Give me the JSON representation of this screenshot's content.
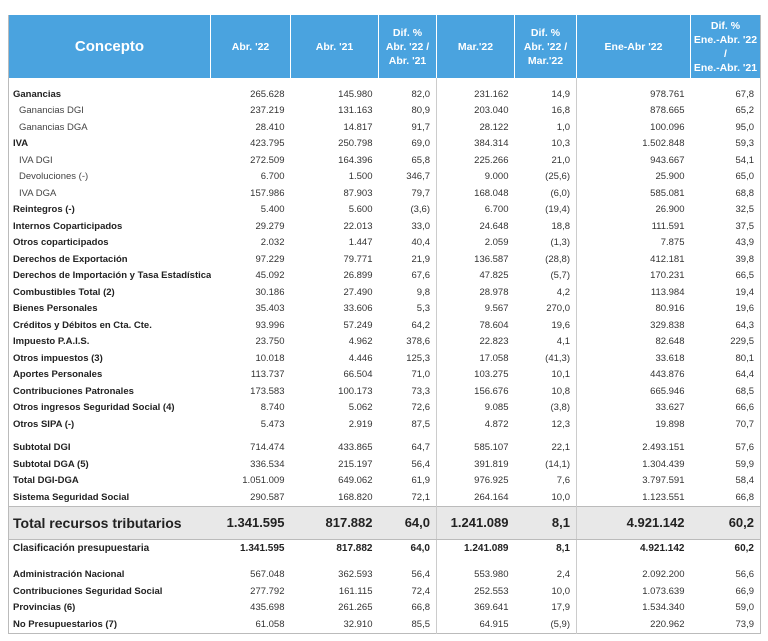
{
  "table": {
    "header": [
      [
        "Concepto"
      ],
      [
        "Abr. '22"
      ],
      [
        "Abr. '21"
      ],
      [
        "Dif. %",
        "Abr. '22 /",
        "Abr. '21"
      ],
      [
        "Mar.'22"
      ],
      [
        "Dif. %",
        "Abr. '22 /",
        "Mar.'22"
      ],
      [
        "Ene-Abr '22"
      ],
      [
        "Dif. %",
        "Ene.-Abr. '22 /",
        "Ene.-Abr. '21"
      ]
    ],
    "rows": [
      [
        "Ganancias",
        "265.628",
        "145.980",
        "82,0",
        "231.162",
        "14,9",
        "978.761",
        "67,8"
      ],
      [
        "Ganancias DGI",
        "237.219",
        "131.163",
        "80,9",
        "203.040",
        "16,8",
        "878.665",
        "65,2"
      ],
      [
        "Ganancias DGA",
        "28.410",
        "14.817",
        "91,7",
        "28.122",
        "1,0",
        "100.096",
        "95,0"
      ],
      [
        "IVA",
        "423.795",
        "250.798",
        "69,0",
        "384.314",
        "10,3",
        "1.502.848",
        "59,3"
      ],
      [
        "IVA DGI",
        "272.509",
        "164.396",
        "65,8",
        "225.266",
        "21,0",
        "943.667",
        "54,1"
      ],
      [
        "Devoluciones (-)",
        "6.700",
        "1.500",
        "346,7",
        "9.000",
        "(25,6)",
        "25.900",
        "65,0"
      ],
      [
        "IVA DGA",
        "157.986",
        "87.903",
        "79,7",
        "168.048",
        "(6,0)",
        "585.081",
        "68,8"
      ],
      [
        "Reintegros (-)",
        "5.400",
        "5.600",
        "(3,6)",
        "6.700",
        "(19,4)",
        "26.900",
        "32,5"
      ],
      [
        "Internos Coparticipados",
        "29.279",
        "22.013",
        "33,0",
        "24.648",
        "18,8",
        "111.591",
        "37,5"
      ],
      [
        "Otros coparticipados",
        "2.032",
        "1.447",
        "40,4",
        "2.059",
        "(1,3)",
        "7.875",
        "43,9"
      ],
      [
        "Derechos de Exportación",
        "97.229",
        "79.771",
        "21,9",
        "136.587",
        "(28,8)",
        "412.181",
        "39,8"
      ],
      [
        "Derechos de Importación y Tasa Estadística",
        "45.092",
        "26.899",
        "67,6",
        "47.825",
        "(5,7)",
        "170.231",
        "66,5"
      ],
      [
        "Combustibles Total (2)",
        "30.186",
        "27.490",
        "9,8",
        "28.978",
        "4,2",
        "113.984",
        "19,4"
      ],
      [
        "Bienes Personales",
        "35.403",
        "33.606",
        "5,3",
        "9.567",
        "270,0",
        "80.916",
        "19,6"
      ],
      [
        "Créditos y Débitos en Cta. Cte.",
        "93.996",
        "57.249",
        "64,2",
        "78.604",
        "19,6",
        "329.838",
        "64,3"
      ],
      [
        "Impuesto P.A.I.S.",
        "23.750",
        "4.962",
        "378,6",
        "22.823",
        "4,1",
        "82.648",
        "229,5"
      ],
      [
        "Otros impuestos (3)",
        "10.018",
        "4.446",
        "125,3",
        "17.058",
        "(41,3)",
        "33.618",
        "80,1"
      ],
      [
        "Aportes Personales",
        "113.737",
        "66.504",
        "71,0",
        "103.275",
        "10,1",
        "443.876",
        "64,4"
      ],
      [
        "Contribuciones Patronales",
        "173.583",
        "100.173",
        "73,3",
        "156.676",
        "10,8",
        "665.946",
        "68,5"
      ],
      [
        "Otros ingresos Seguridad Social (4)",
        "8.740",
        "5.062",
        "72,6",
        "9.085",
        "(3,8)",
        "33.627",
        "66,6"
      ],
      [
        "Otros SIPA (-)",
        "5.473",
        "2.919",
        "87,5",
        "4.872",
        "12,3",
        "19.898",
        "70,7"
      ],
      [
        "Subtotal DGI",
        "714.474",
        "433.865",
        "64,7",
        "585.107",
        "22,1",
        "2.493.151",
        "57,6"
      ],
      [
        "Subtotal DGA (5)",
        "336.534",
        "215.197",
        "56,4",
        "391.819",
        "(14,1)",
        "1.304.439",
        "59,9"
      ],
      [
        "Total DGI-DGA",
        "1.051.009",
        "649.062",
        "61,9",
        "976.925",
        "7,6",
        "3.797.591",
        "58,4"
      ],
      [
        "Sistema Seguridad Social",
        "290.587",
        "168.820",
        "72,1",
        "264.164",
        "10,0",
        "1.123.551",
        "66,8"
      ],
      [
        "Total recursos tributarios",
        "1.341.595",
        "817.882",
        "64,0",
        "1.241.089",
        "8,1",
        "4.921.142",
        "60,2"
      ],
      [
        "Clasificación presupuestaria",
        "1.341.595",
        "817.882",
        "64,0",
        "1.241.089",
        "8,1",
        "4.921.142",
        "60,2"
      ],
      [
        "Administración Nacional",
        "567.048",
        "362.593",
        "56,4",
        "553.980",
        "2,4",
        "2.092.200",
        "56,6"
      ],
      [
        "Contribuciones Seguridad Social",
        "277.792",
        "161.115",
        "72,4",
        "252.553",
        "10,0",
        "1.073.639",
        "66,9"
      ],
      [
        "Provincias (6)",
        "435.698",
        "261.265",
        "66,8",
        "369.641",
        "17,9",
        "1.534.340",
        "59,0"
      ],
      [
        "No Presupuestarios (7)",
        "61.058",
        "32.910",
        "85,5",
        "64.915",
        "(5,9)",
        "220.962",
        "73,9"
      ]
    ]
  }
}
